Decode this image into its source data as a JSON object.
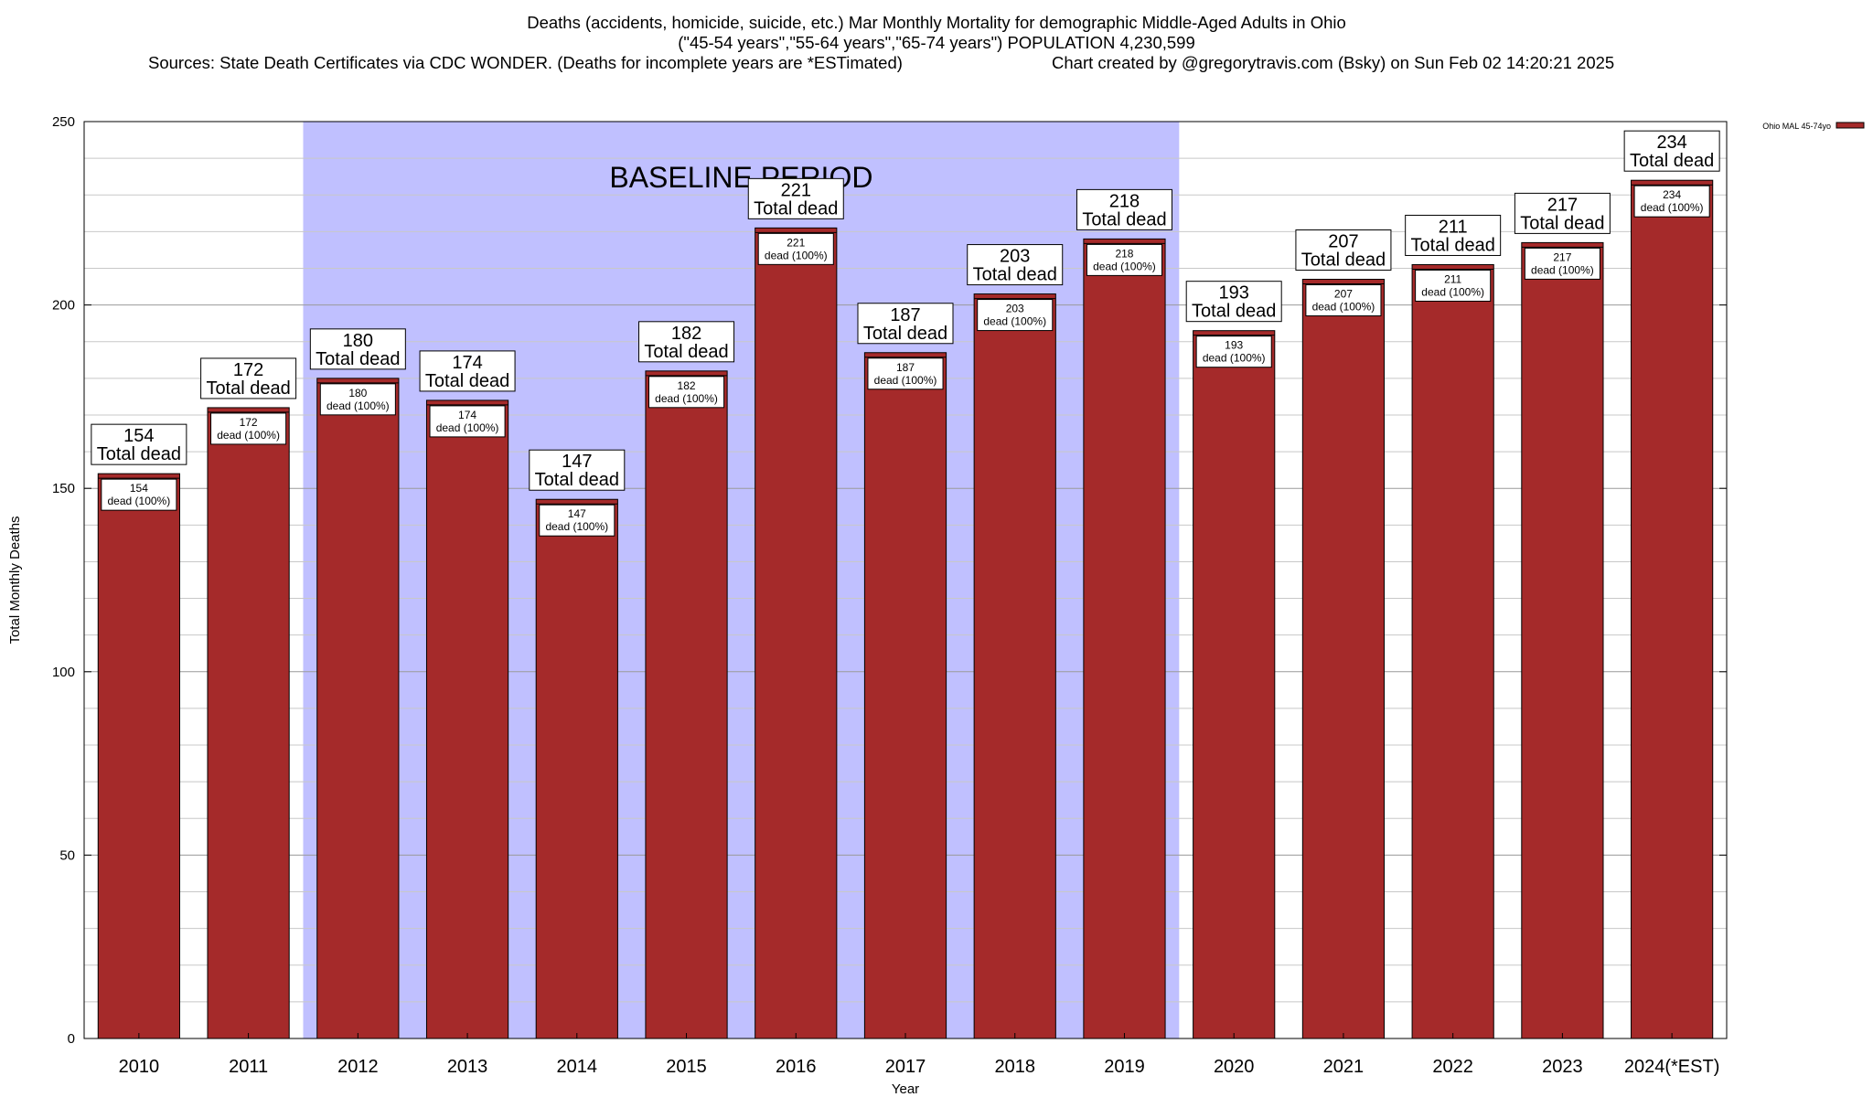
{
  "header": {
    "title": "Deaths (accidents, homicide, suicide, etc.) Mar Monthly Mortality for demographic Middle-Aged Adults in Ohio",
    "subtitle": "(\"45-54 years\",\"55-64 years\",\"65-74 years\") POPULATION 4,230,599",
    "sources": "Sources: State Death Certificates via CDC WONDER. (Deaths for incomplete years are *ESTimated)",
    "credit": "Chart created by @gregorytravis.com (Bsky) on Sun Feb 02 14:20:21 2025"
  },
  "chart_data": {
    "type": "bar",
    "categories": [
      "2010",
      "2011",
      "2012",
      "2013",
      "2014",
      "2015",
      "2016",
      "2017",
      "2018",
      "2019",
      "2020",
      "2021",
      "2022",
      "2023",
      "2024(*EST)"
    ],
    "series": [
      {
        "name": "Ohio MAL 45-74yo",
        "values": [
          154,
          172,
          180,
          174,
          147,
          182,
          221,
          187,
          203,
          218,
          193,
          207,
          211,
          217,
          234
        ],
        "color": "#a52a2a"
      }
    ],
    "outer_label_suffix": "Total dead",
    "inner_label_suffix": "dead (100%)",
    "xlabel": "Year",
    "ylabel": "Total Monthly Deaths",
    "ylim": [
      0,
      250
    ],
    "yticks": [
      0,
      50,
      100,
      150,
      200,
      250
    ],
    "grid": true,
    "legend": "top-right",
    "annotation": {
      "text": "BASELINE PERIOD",
      "from": "2012",
      "to": "2019",
      "color": "#c0c0ff"
    }
  }
}
